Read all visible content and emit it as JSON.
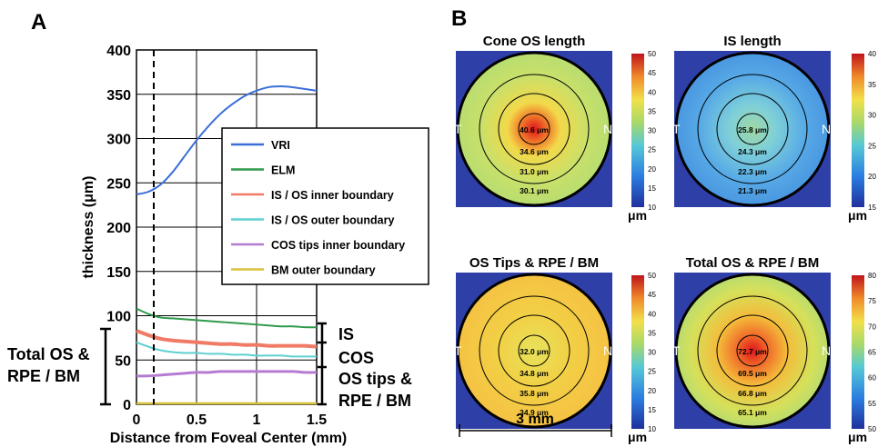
{
  "colors": {
    "map_bg": "#2f3fa8",
    "vri": "#3b6fd8",
    "elm": "#2e9a4a",
    "isos_inner": "#f07a66",
    "isos_outer": "#5fd0d0",
    "cos_tips": "#b57bd1",
    "bm_outer": "#d8c23a"
  },
  "panel_a": {
    "letter": "A",
    "ylabel": "thickness (μm)",
    "xlabel": "Distance from Foveal Center (mm)",
    "legend": [
      "VRI",
      "ELM",
      "IS / OS inner boundary",
      "IS / OS outer boundary",
      "COS tips inner boundary",
      "BM outer boundary"
    ],
    "bracket_labels": {
      "is": "IS",
      "cos": "COS",
      "os_tips_line1": "OS tips &",
      "os_tips_line2": "RPE / BM",
      "total_line1": "Total OS &",
      "total_line2": "RPE / BM"
    }
  },
  "panel_b": {
    "letter": "B",
    "scale_bar_label": "3 mm",
    "maps": [
      {
        "title": "Cone OS length",
        "left_letter": "T",
        "right_letter": "N",
        "ring_values": [
          "40.6 μm",
          "34.6 μm",
          "31.0 μm",
          "30.1 μm"
        ],
        "colorbar_ticks": [
          "50",
          "45",
          "40",
          "35",
          "30",
          "25",
          "20",
          "15",
          "10"
        ],
        "colorbar_unit": "μm"
      },
      {
        "title": "IS length",
        "left_letter": "T",
        "right_letter": "N",
        "ring_values": [
          "25.8 μm",
          "24.3 μm",
          "22.3 μm",
          "21.3 μm"
        ],
        "colorbar_ticks": [
          "40",
          "35",
          "30",
          "25",
          "20",
          "15"
        ],
        "colorbar_unit": "μm"
      },
      {
        "title": "OS Tips & RPE / BM",
        "left_letter": "T",
        "right_letter": "N",
        "ring_values": [
          "32.0 μm",
          "34.8 μm",
          "35.8 μm",
          "34.9 μm"
        ],
        "colorbar_ticks": [
          "50",
          "45",
          "40",
          "35",
          "30",
          "25",
          "20",
          "15",
          "10"
        ],
        "colorbar_unit": "μm"
      },
      {
        "title": "Total OS & RPE / BM",
        "left_letter": "T",
        "right_letter": "N",
        "ring_values": [
          "72.7 μm",
          "69.5 μm",
          "66.8 μm",
          "65.1 μm"
        ],
        "colorbar_ticks": [
          "80",
          "75",
          "70",
          "65",
          "60",
          "55",
          "50"
        ],
        "colorbar_unit": "μm"
      }
    ]
  },
  "chart_data": {
    "type": "line",
    "xlabel": "Distance from Foveal Center (mm)",
    "ylabel": "thickness (μm)",
    "xlim": [
      0,
      1.5
    ],
    "ylim": [
      0,
      400
    ],
    "xticks": [
      "0",
      "0.5",
      "1",
      "1.5"
    ],
    "yticks": [
      "0",
      "50",
      "100",
      "150",
      "200",
      "250",
      "300",
      "350",
      "400"
    ],
    "grid": true,
    "legend_position": "right",
    "x": [
      0,
      0.1,
      0.2,
      0.3,
      0.4,
      0.5,
      0.6,
      0.7,
      0.8,
      0.9,
      1.0,
      1.1,
      1.2,
      1.3,
      1.4,
      1.5
    ],
    "series": [
      {
        "name": "VRI",
        "values": [
          237,
          240,
          248,
          262,
          280,
          298,
          314,
          328,
          339,
          348,
          354,
          358,
          359,
          358,
          356,
          354
        ]
      },
      {
        "name": "ELM",
        "values": [
          108,
          102,
          98,
          97,
          96,
          95,
          94,
          93,
          92,
          91,
          90,
          89,
          88,
          88,
          87,
          87
        ]
      },
      {
        "name": "IS / OS inner boundary",
        "values": [
          83,
          78,
          74,
          72,
          71,
          70,
          69,
          68,
          68,
          67,
          67,
          66,
          66,
          66,
          66,
          65
        ]
      },
      {
        "name": "IS / OS outer boundary",
        "values": [
          70,
          65,
          61,
          59,
          58,
          58,
          57,
          57,
          56,
          56,
          55,
          55,
          55,
          54,
          54,
          54
        ]
      },
      {
        "name": "COS tips inner boundary",
        "values": [
          32,
          32,
          33,
          34,
          35,
          36,
          36,
          37,
          37,
          37,
          37,
          37,
          37,
          37,
          36,
          36
        ]
      },
      {
        "name": "BM outer boundary",
        "values": [
          1,
          1,
          1,
          1,
          1,
          1,
          1,
          1,
          1,
          1,
          1,
          1,
          1,
          1,
          1,
          1
        ]
      }
    ],
    "annotations": [
      "fovea dashed marker at x = 0.15"
    ]
  }
}
